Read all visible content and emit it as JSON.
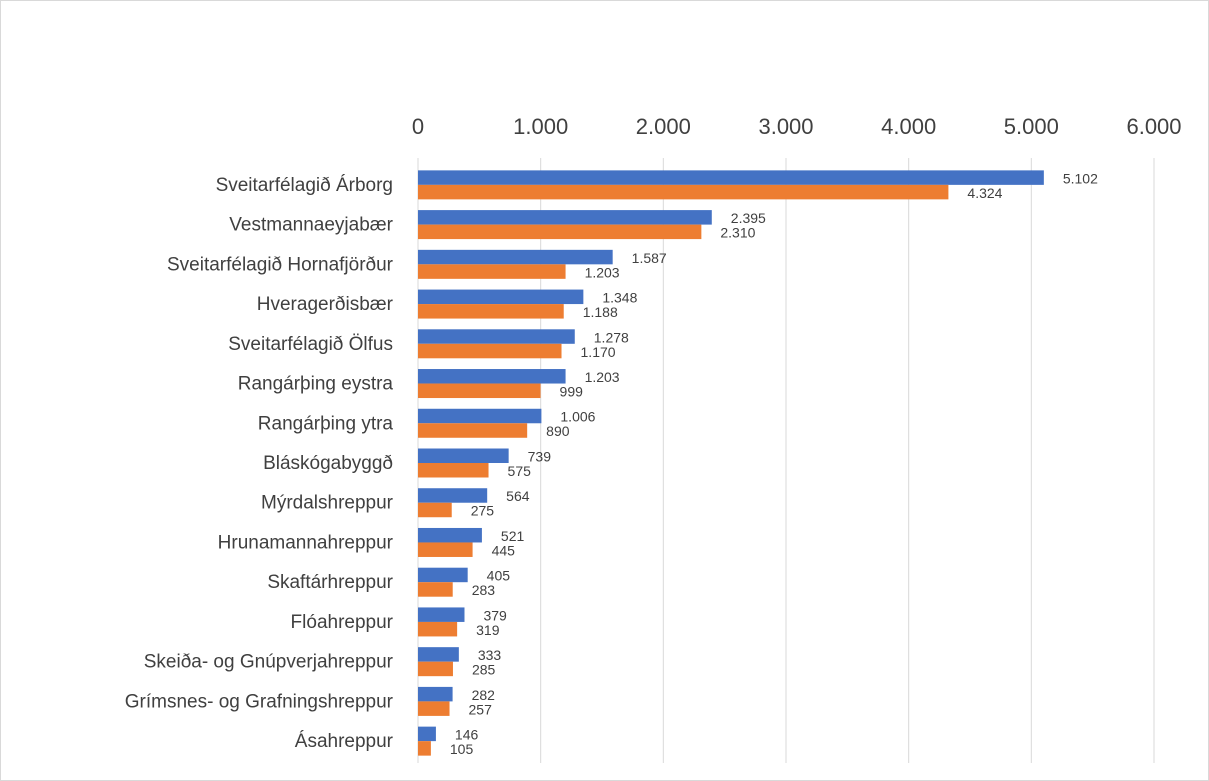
{
  "chart_data": {
    "type": "bar",
    "orientation": "horizontal",
    "categories": [
      "Sveitarfélagið Árborg",
      "Vestmannaeyjabær",
      "Sveitarfélagið Hornafjörður",
      "Hveragerðisbær",
      "Sveitarfélagið Ölfus",
      "Rangárþing eystra",
      "Rangárþing ytra",
      "Bláskógabyggð",
      "Mýrdalshreppur",
      "Hrunamannahreppur",
      "Skaftárhreppur",
      "Flóahreppur",
      "Skeiða- og Gnúpverjahreppur",
      "Grímsnes- og Grafningshreppur",
      "Ásahreppur"
    ],
    "series": [
      {
        "color": "#4472c4",
        "values": [
          5102,
          2395,
          1587,
          1348,
          1278,
          1203,
          1006,
          739,
          564,
          521,
          405,
          379,
          333,
          282,
          146
        ],
        "value_labels": [
          "5.102",
          "2.395",
          "1.587",
          "1.348",
          "1.278",
          "1.203",
          "1.006",
          "739",
          "564",
          "521",
          "405",
          "379",
          "333",
          "282",
          "146"
        ]
      },
      {
        "color": "#ed7d31",
        "values": [
          4324,
          2310,
          1203,
          1188,
          1170,
          999,
          890,
          575,
          275,
          445,
          283,
          319,
          285,
          257,
          105
        ],
        "value_labels": [
          "4.324",
          "2.310",
          "1.203",
          "1.188",
          "1.170",
          "999",
          "890",
          "575",
          "275",
          "445",
          "283",
          "319",
          "285",
          "257",
          "105"
        ]
      }
    ],
    "xlim": [
      0,
      6000
    ],
    "xticks": [
      0,
      {
        "value": 1000,
        "label": "1.000"
      },
      {
        "value": 2000,
        "label": "2.000"
      },
      {
        "value": 3000,
        "label": "3.000"
      },
      {
        "value": 4000,
        "label": "4.000"
      },
      {
        "value": 5000,
        "label": "5.000"
      },
      {
        "value": 6000,
        "label": "6.000"
      }
    ],
    "grid": true
  }
}
